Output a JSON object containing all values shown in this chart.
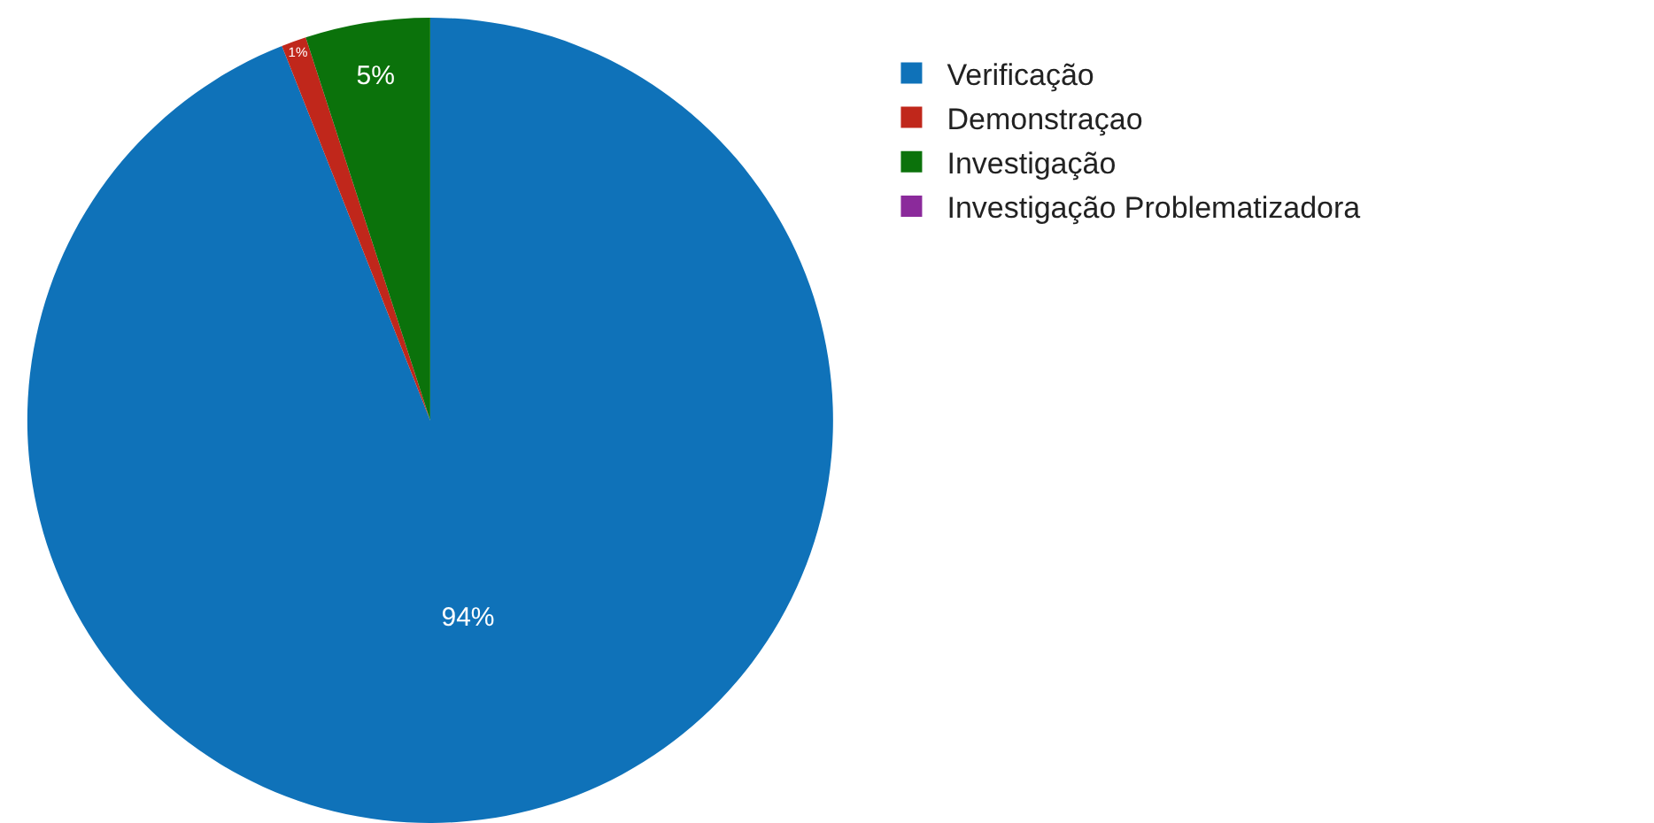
{
  "chart_data": {
    "type": "pie",
    "categories": [
      "Verificação",
      "Demonstraçao",
      "Investigação",
      "Investigação Problematizadora"
    ],
    "values": [
      94,
      1,
      5,
      0
    ],
    "colors": [
      "#0f72b9",
      "#c0271b",
      "#0b720b",
      "#8b2a9b"
    ],
    "value_labels": [
      "94%",
      "1%",
      "5%",
      null
    ],
    "legend": "top right"
  }
}
